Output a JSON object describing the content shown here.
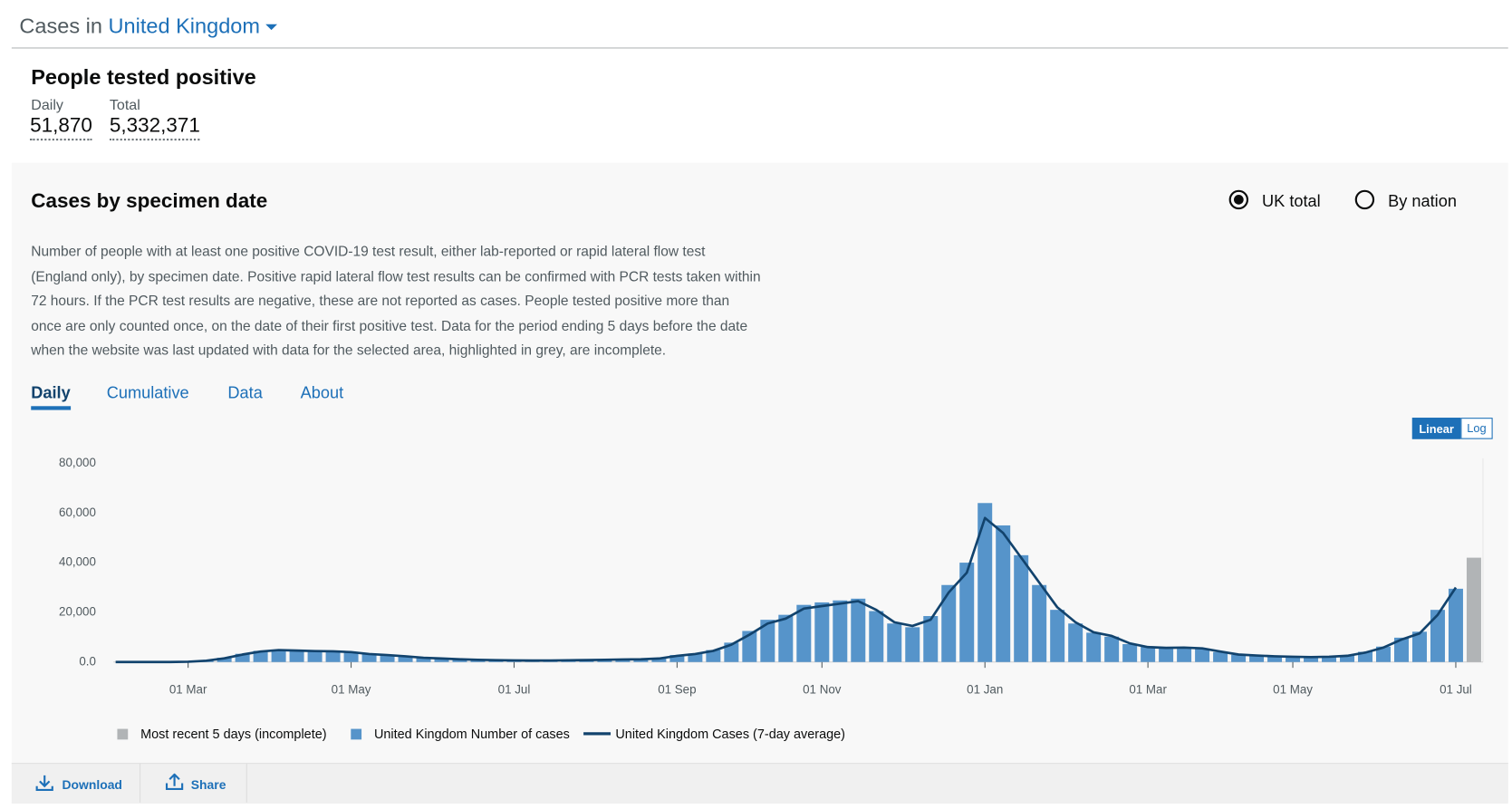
{
  "header": {
    "prefix": "Cases in",
    "area": "United Kingdom"
  },
  "headline": {
    "title": "People tested positive",
    "daily_label": "Daily",
    "daily_value": "51,870",
    "total_label": "Total",
    "total_value": "5,332,371"
  },
  "card": {
    "title": "Cases by specimen date",
    "radios": [
      "UK total",
      "By nation"
    ],
    "description": "Number of people with at least one positive COVID-19 test result, either lab-reported or rapid lateral flow test (England only), by specimen date. Positive rapid lateral flow test results can be confirmed with PCR tests taken within 72 hours. If the PCR test results are negative, these are not reported as cases. People tested positive more than once are only counted once, on the date of their first positive test. Data for the period ending 5 days before the date when the website was last updated with data for the selected area, highlighted in grey, are incomplete.",
    "tabs": [
      "Daily",
      "Cumulative",
      "Data",
      "About"
    ],
    "scale_buttons": [
      "Linear",
      "Log"
    ],
    "actions": [
      "Download",
      "Share"
    ]
  },
  "chart_data": {
    "type": "bar",
    "categories": [
      null,
      null,
      null,
      null,
      "01 Mar",
      null,
      null,
      null,
      null,
      null,
      null,
      null,
      null,
      "01 May",
      null,
      null,
      null,
      null,
      null,
      null,
      null,
      null,
      "01 Jul",
      null,
      null,
      null,
      null,
      null,
      null,
      null,
      null,
      "01 Sep",
      null,
      null,
      null,
      null,
      null,
      null,
      null,
      "01 Nov",
      null,
      null,
      null,
      null,
      null,
      null,
      null,
      null,
      "01 Jan",
      null,
      null,
      null,
      null,
      null,
      null,
      null,
      null,
      "01 Mar",
      null,
      null,
      null,
      null,
      null,
      null,
      null,
      "01 May",
      null,
      null,
      null,
      null,
      null,
      null,
      null,
      null,
      "01 Jul",
      null
    ],
    "series": [
      {
        "name": "Most recent 5 days (incomplete)",
        "type": "bar",
        "color": "#b1b4b6",
        "values": [
          null,
          null,
          null,
          null,
          null,
          null,
          null,
          null,
          null,
          null,
          null,
          null,
          null,
          null,
          null,
          null,
          null,
          null,
          null,
          null,
          null,
          null,
          null,
          null,
          null,
          null,
          null,
          null,
          null,
          null,
          null,
          null,
          null,
          null,
          null,
          null,
          null,
          null,
          null,
          null,
          null,
          null,
          null,
          null,
          null,
          null,
          null,
          null,
          null,
          null,
          null,
          null,
          null,
          null,
          null,
          null,
          null,
          null,
          null,
          null,
          null,
          null,
          null,
          null,
          null,
          null,
          null,
          null,
          null,
          null,
          null,
          null,
          null,
          null,
          null,
          42000
        ]
      },
      {
        "name": "United Kingdom Number of cases",
        "type": "bar",
        "color": "#5694ca",
        "values": [
          0,
          0,
          0,
          20,
          150,
          600,
          1700,
          3300,
          4500,
          5000,
          4700,
          4500,
          4400,
          3900,
          3300,
          2700,
          2200,
          1800,
          1300,
          1100,
          950,
          700,
          640,
          610,
          650,
          720,
          820,
          880,
          1050,
          1150,
          1600,
          2800,
          3400,
          4800,
          7800,
          12500,
          17000,
          19000,
          23000,
          24000,
          24800,
          25500,
          20500,
          15500,
          14000,
          18500,
          31000,
          40000,
          64000,
          55000,
          43000,
          31000,
          21000,
          15500,
          11800,
          10200,
          7200,
          6100,
          5600,
          5900,
          5300,
          4000,
          2900,
          2500,
          2200,
          2050,
          1950,
          2150,
          2600,
          4100,
          6200,
          9800,
          12200,
          21000,
          29500,
          null
        ]
      },
      {
        "name": "United Kingdom Cases (7-day average)",
        "type": "line",
        "color": "#12436d",
        "values": [
          0,
          0,
          0,
          10,
          100,
          500,
          1500,
          3000,
          4200,
          4800,
          4600,
          4400,
          4300,
          4000,
          3200,
          2800,
          2300,
          1700,
          1400,
          1100,
          900,
          750,
          650,
          600,
          620,
          700,
          800,
          900,
          1000,
          1100,
          1400,
          2500,
          3200,
          4500,
          7000,
          11000,
          15500,
          17500,
          21500,
          22500,
          23500,
          24500,
          21000,
          16000,
          14500,
          17000,
          28000,
          36000,
          58000,
          52000,
          42000,
          32000,
          22000,
          16000,
          12000,
          10500,
          7500,
          6000,
          5700,
          5800,
          5500,
          4200,
          3000,
          2600,
          2300,
          2100,
          2000,
          2100,
          2500,
          3800,
          5800,
          9000,
          11500,
          19000,
          30000,
          null
        ]
      }
    ],
    "ylim": [
      0,
      82000
    ],
    "yticks": [
      {
        "value": 0,
        "label": "0.0"
      },
      {
        "value": 20000,
        "label": "20,000"
      },
      {
        "value": 40000,
        "label": "40,000"
      },
      {
        "value": 60000,
        "label": "60,000"
      },
      {
        "value": 80000,
        "label": "80,000"
      }
    ],
    "grid": false
  }
}
